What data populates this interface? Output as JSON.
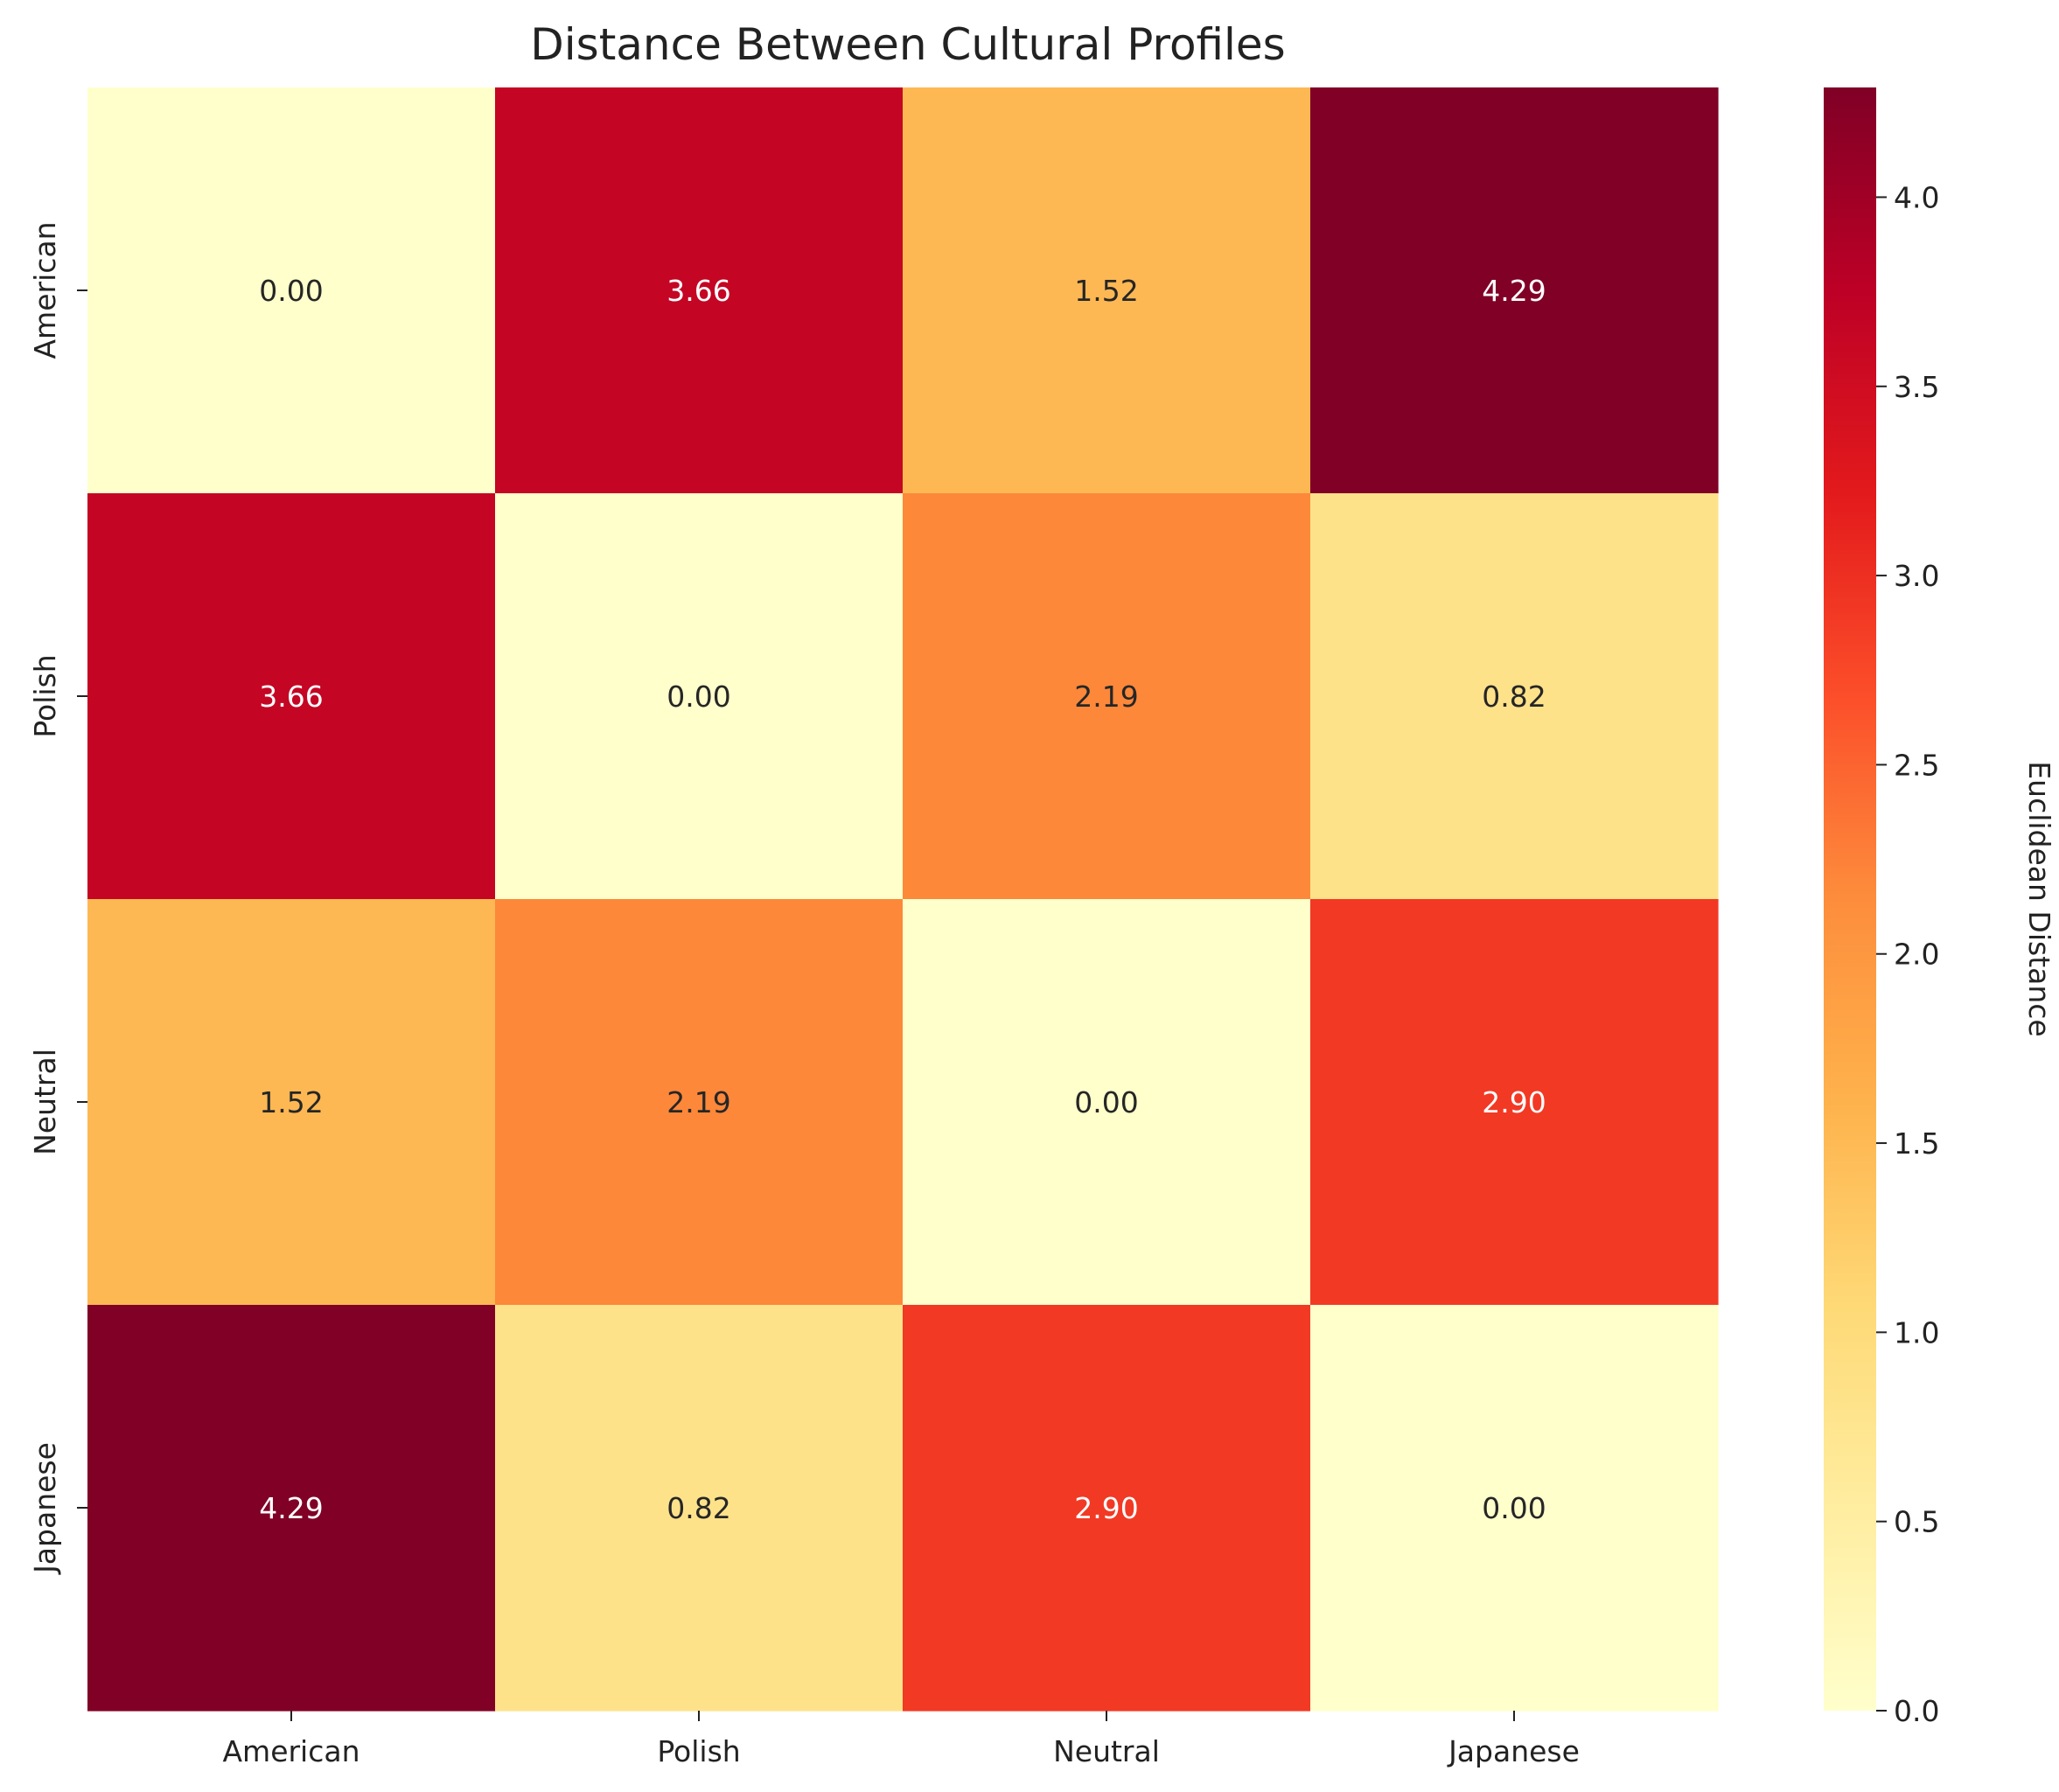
{
  "chart_data": {
    "type": "heatmap",
    "title": "Distance Between Cultural Profiles",
    "rows": [
      "American",
      "Polish",
      "Neutral",
      "Japanese"
    ],
    "columns": [
      "American",
      "Polish",
      "Neutral",
      "Japanese"
    ],
    "values": [
      [
        0.0,
        3.66,
        1.52,
        4.29
      ],
      [
        3.66,
        0.0,
        2.19,
        0.82
      ],
      [
        1.52,
        2.19,
        0.0,
        2.9
      ],
      [
        4.29,
        0.82,
        2.9,
        0.0
      ]
    ],
    "value_format": "0.00",
    "colorbar": {
      "label": "Euclidean Distance",
      "range": [
        0.0,
        4.29
      ],
      "ticks": [
        0.0,
        0.5,
        1.0,
        1.5,
        2.0,
        2.5,
        3.0,
        3.5,
        4.0
      ],
      "tick_labels": [
        "0.0",
        "0.5",
        "1.0",
        "1.5",
        "2.0",
        "2.5",
        "3.0",
        "3.5",
        "4.0"
      ],
      "colormap": "YlOrRd",
      "colors": [
        "#ffffcc",
        "#ffeda0",
        "#fed976",
        "#feb24c",
        "#fd8d3c",
        "#fc4e2a",
        "#e31a1c",
        "#bd0026",
        "#800026"
      ]
    },
    "grid": false,
    "legend": "colorbar-right"
  }
}
